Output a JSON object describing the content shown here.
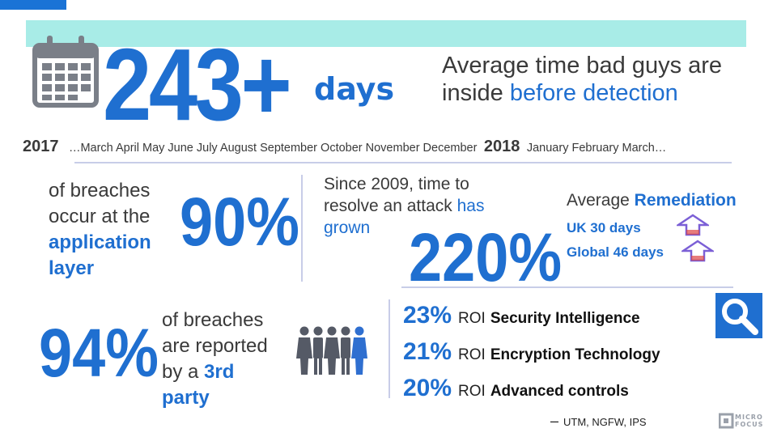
{
  "headline": {
    "number": "243+",
    "unit": "days",
    "caption_line1": "Average time bad guys are",
    "caption_line2_plain": "inside ",
    "caption_line2_accent": "before detection"
  },
  "timeline": {
    "year_start": "2017",
    "months_1": "…March April May June July August September October November December",
    "year_end": "2018",
    "months_2": "January February March…"
  },
  "app_layer": {
    "line1": "of breaches",
    "line2": "occur at the",
    "accent1": "application",
    "accent2": "layer",
    "percent": "90%"
  },
  "resolve": {
    "line1": "Since 2009, time to",
    "line2_plain": "resolve an attack ",
    "line2_accent": "has",
    "line3_accent": "grown",
    "percent": "220%"
  },
  "remediation": {
    "title_plain": "Average ",
    "title_accent": "Remediation",
    "uk": "UK 30 days",
    "global": "Global 46 days"
  },
  "third_party": {
    "percent": "94%",
    "line1": "of breaches",
    "line2": "are reported",
    "line3_plain": "by a ",
    "line3_accent": "3rd",
    "line4_accent": "party"
  },
  "roi": {
    "items": [
      {
        "pct": "23%",
        "roi": "ROI",
        "label": "Security Intelligence"
      },
      {
        "pct": "21%",
        "roi": "ROI",
        "label": "Encryption Technology"
      },
      {
        "pct": "20%",
        "roi": "ROI",
        "label": "Advanced controls"
      }
    ],
    "note_dash": "–",
    "note": "UTM, NGFW, IPS"
  },
  "logo": {
    "line1": "MICRO",
    "line2": "FOCUS"
  },
  "colors": {
    "accent": "#1f6fd0",
    "teal": "#a8ece7",
    "icon": "#7a7f88",
    "arrow": "#7b5fd6"
  },
  "icons": [
    "calendar-icon",
    "search-icon",
    "people-icon",
    "arrow-up-icon",
    "micro-focus-logo"
  ]
}
